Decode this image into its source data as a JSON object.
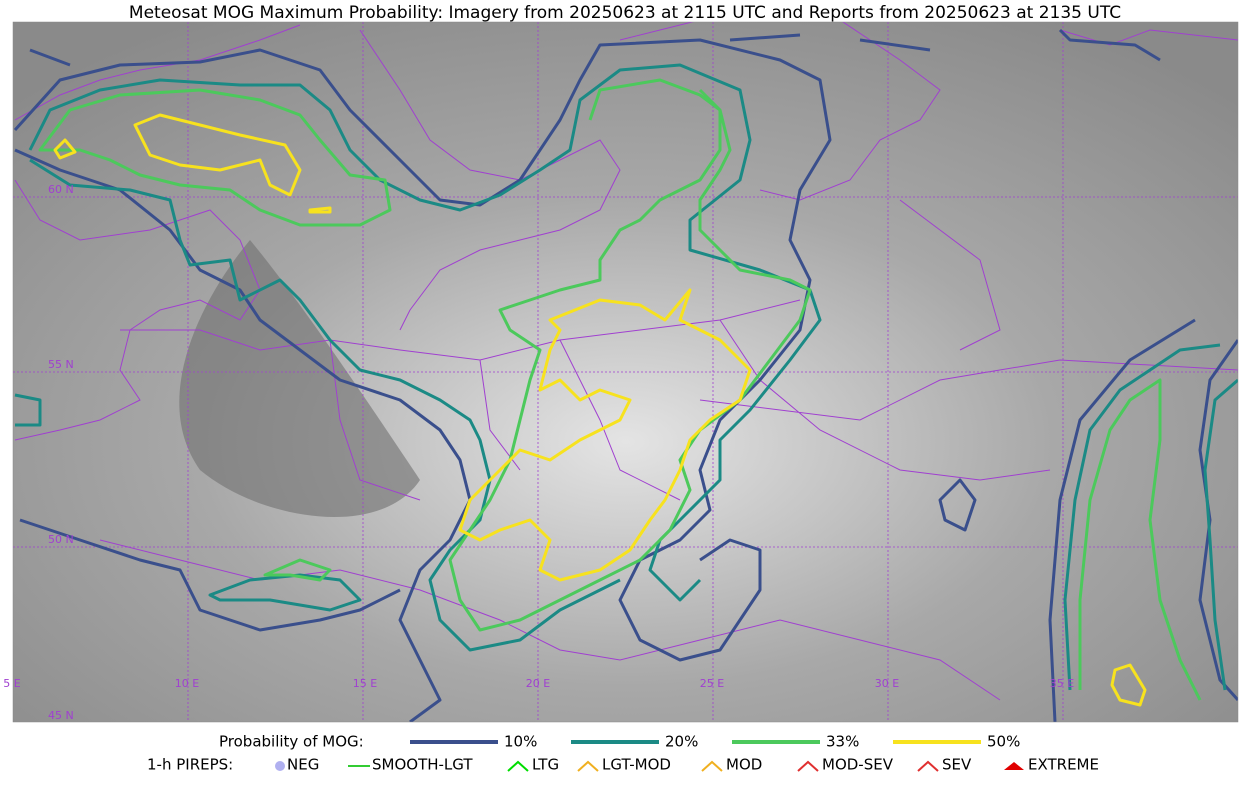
{
  "title": "Meteosat MOG Maximum Probability: Imagery from 20250623 at 2115 UTC and Reports from 20250623 at 2135 UTC",
  "grid_labels": {
    "lat": [
      "60 N",
      "55 N",
      "50 N",
      "45 N"
    ],
    "lon": [
      "5 E",
      "10 E",
      "15 E",
      "20 E",
      "25 E",
      "30 E",
      "35 E"
    ]
  },
  "legend": {
    "label": "Probability of MOG:",
    "items": [
      {
        "label": "10%",
        "color": "#3a4f8c"
      },
      {
        "label": "20%",
        "color": "#1b8a85"
      },
      {
        "label": "33%",
        "color": "#4cc95c"
      },
      {
        "label": "50%",
        "color": "#f7e21e"
      }
    ]
  },
  "pireps": {
    "label": "1-h PIREPS:",
    "items": [
      {
        "label": "NEG",
        "color": "#b0b0f0"
      },
      {
        "label": "SMOOTH-LGT",
        "color": "#33cc33"
      },
      {
        "label": "LTG",
        "color": "#00dd00"
      },
      {
        "label": "LGT-MOD",
        "color": "#f0b020"
      },
      {
        "label": "MOD",
        "color": "#f0b020"
      },
      {
        "label": "MOD-SEV",
        "color": "#e03030"
      },
      {
        "label": "SEV",
        "color": "#e03030"
      },
      {
        "label": "EXTREME",
        "color": "#e00000"
      }
    ]
  }
}
